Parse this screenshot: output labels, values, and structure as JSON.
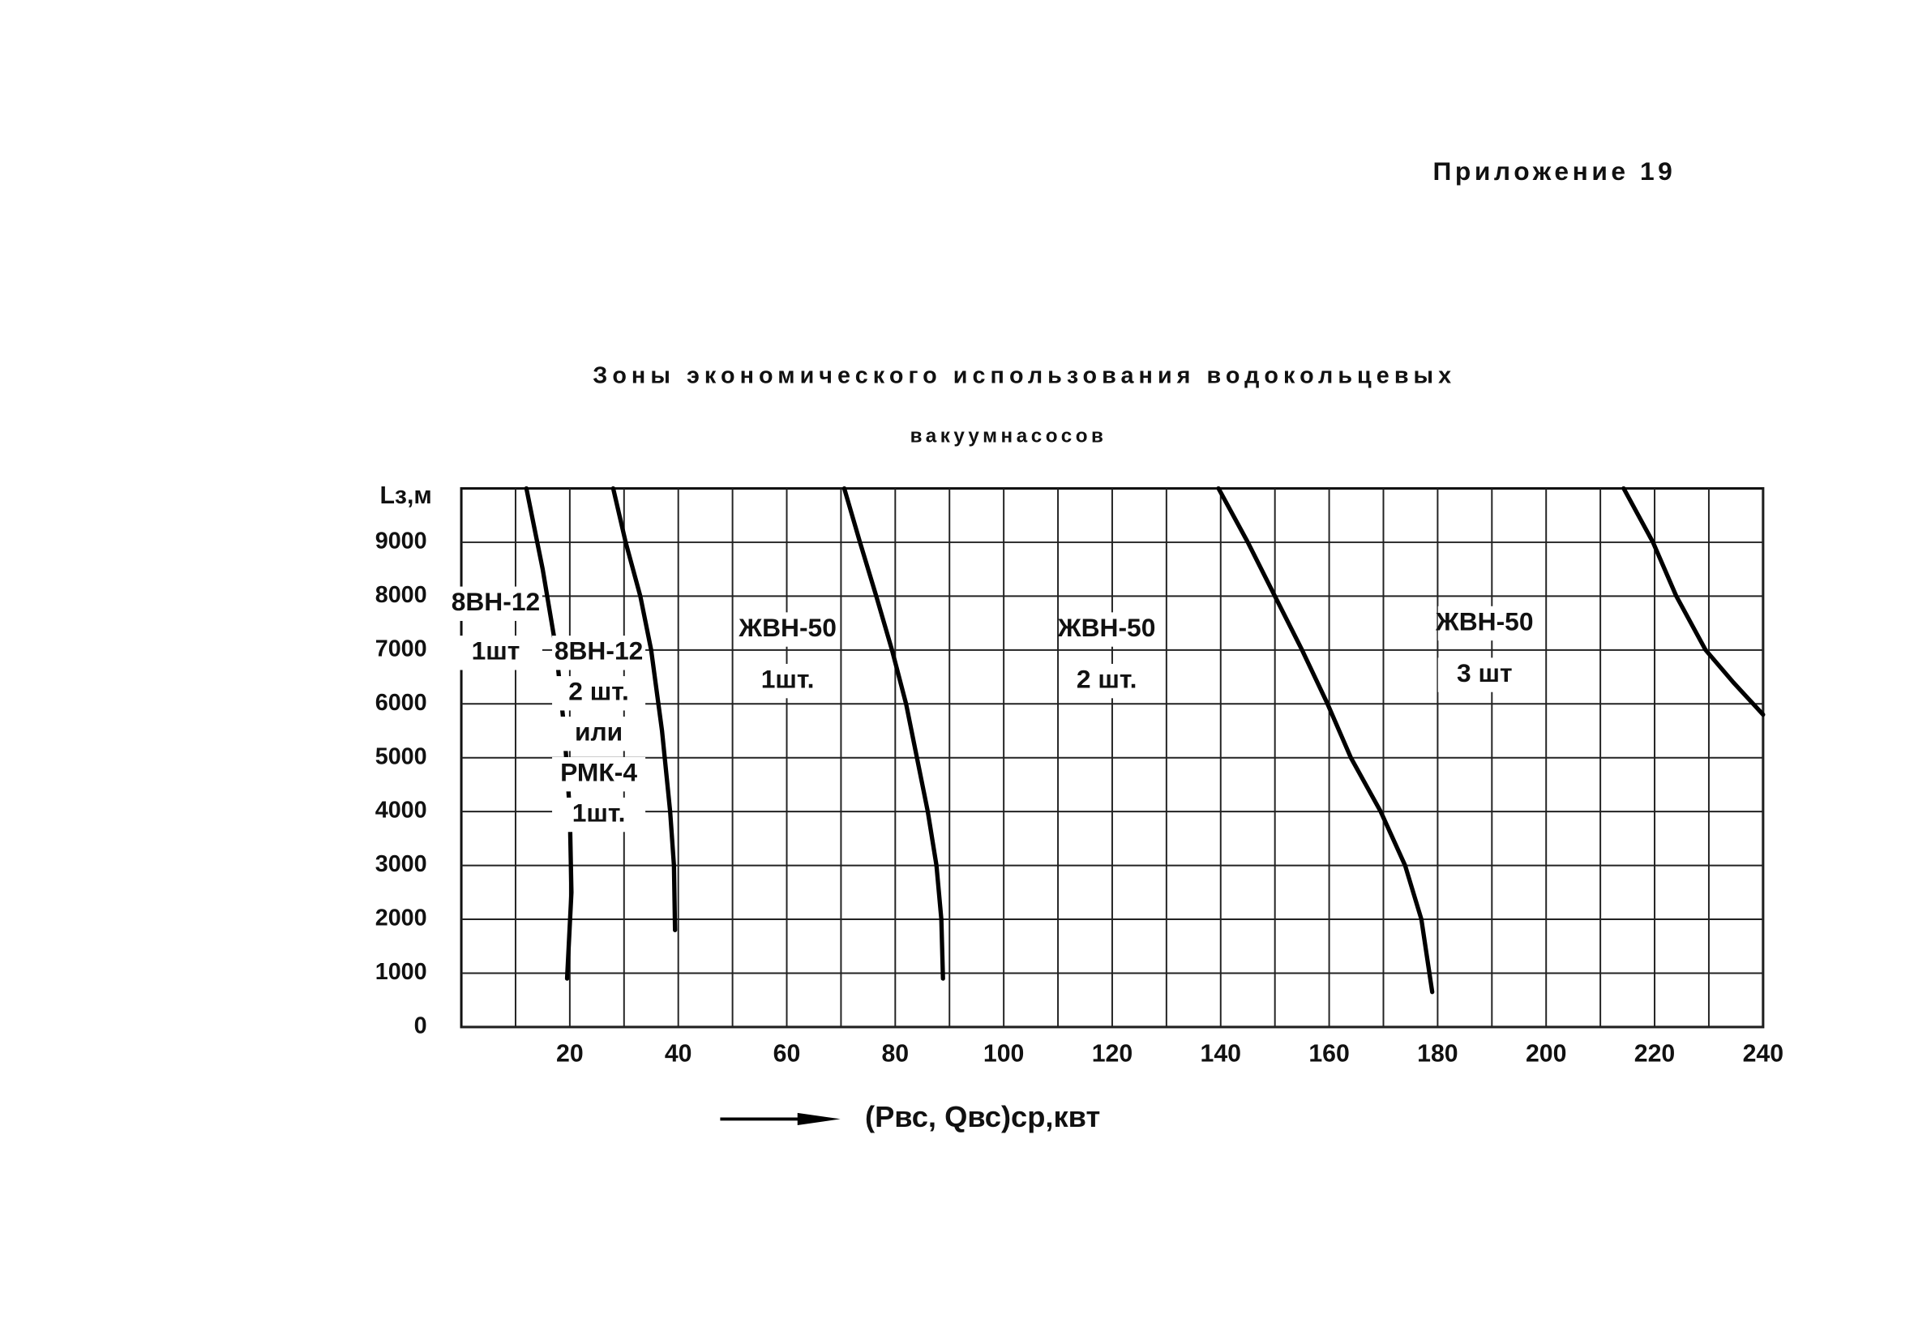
{
  "header": "Приложение 19",
  "chart_data": {
    "type": "line",
    "title": [
      "Зоны экономического использования водокольцевых",
      "вакуумнасосов"
    ],
    "y_label": "Lз,м",
    "x_label": "(Pвс, Qвс)ср,квт",
    "xlim": [
      0,
      240
    ],
    "ylim": [
      0,
      10000
    ],
    "xticks": [
      20,
      40,
      60,
      80,
      100,
      120,
      140,
      160,
      180,
      200,
      220,
      240
    ],
    "x_gridlines": [
      10,
      20,
      30,
      40,
      50,
      60,
      70,
      80,
      90,
      100,
      110,
      120,
      130,
      140,
      150,
      160,
      170,
      180,
      190,
      200,
      210,
      220,
      230,
      240
    ],
    "yticks": [
      0,
      1000,
      2000,
      3000,
      4000,
      5000,
      6000,
      7000,
      8000,
      9000
    ],
    "grid": true,
    "color": "#000000",
    "series": [
      {
        "x": [
          12,
          15,
          17.5,
          19,
          20,
          20.3,
          19.5
        ],
        "values": [
          10000,
          8500,
          7000,
          5500,
          4000,
          2500,
          900
        ]
      },
      {
        "x": [
          28,
          30.3,
          33,
          35,
          37,
          38.5,
          39.2,
          39.4
        ],
        "values": [
          10000,
          9000,
          8000,
          7000,
          5500,
          4000,
          3000,
          1800
        ]
      },
      {
        "x": [
          70.6,
          73.5,
          76.5,
          79.4,
          82,
          84,
          86,
          87.6,
          88.5,
          88.8
        ],
        "values": [
          10000,
          9000,
          8000,
          7000,
          6000,
          5000,
          4000,
          3000,
          2000,
          900
        ]
      },
      {
        "x": [
          139.6,
          145,
          150,
          155,
          159.7,
          164,
          169.5,
          174,
          177,
          179
        ],
        "values": [
          10000,
          9000,
          8000,
          7000,
          6000,
          5000,
          4000,
          3000,
          2000,
          650
        ]
      },
      {
        "x": [
          214.3,
          219.7,
          224,
          229.4,
          234.5,
          240
        ],
        "values": [
          10000,
          9000,
          8000,
          7000,
          6400,
          5800
        ]
      }
    ],
    "zones": [
      [
        "8ВН-12",
        "1шт"
      ],
      [
        "8ВН-12",
        "2 шт.",
        "или",
        "РМК-4",
        "1шт."
      ],
      [
        "ЖВН-50",
        "1шт."
      ],
      [
        "ЖВН-50",
        "2 шт."
      ],
      [
        "ЖВН-50",
        "3 шт"
      ]
    ]
  }
}
